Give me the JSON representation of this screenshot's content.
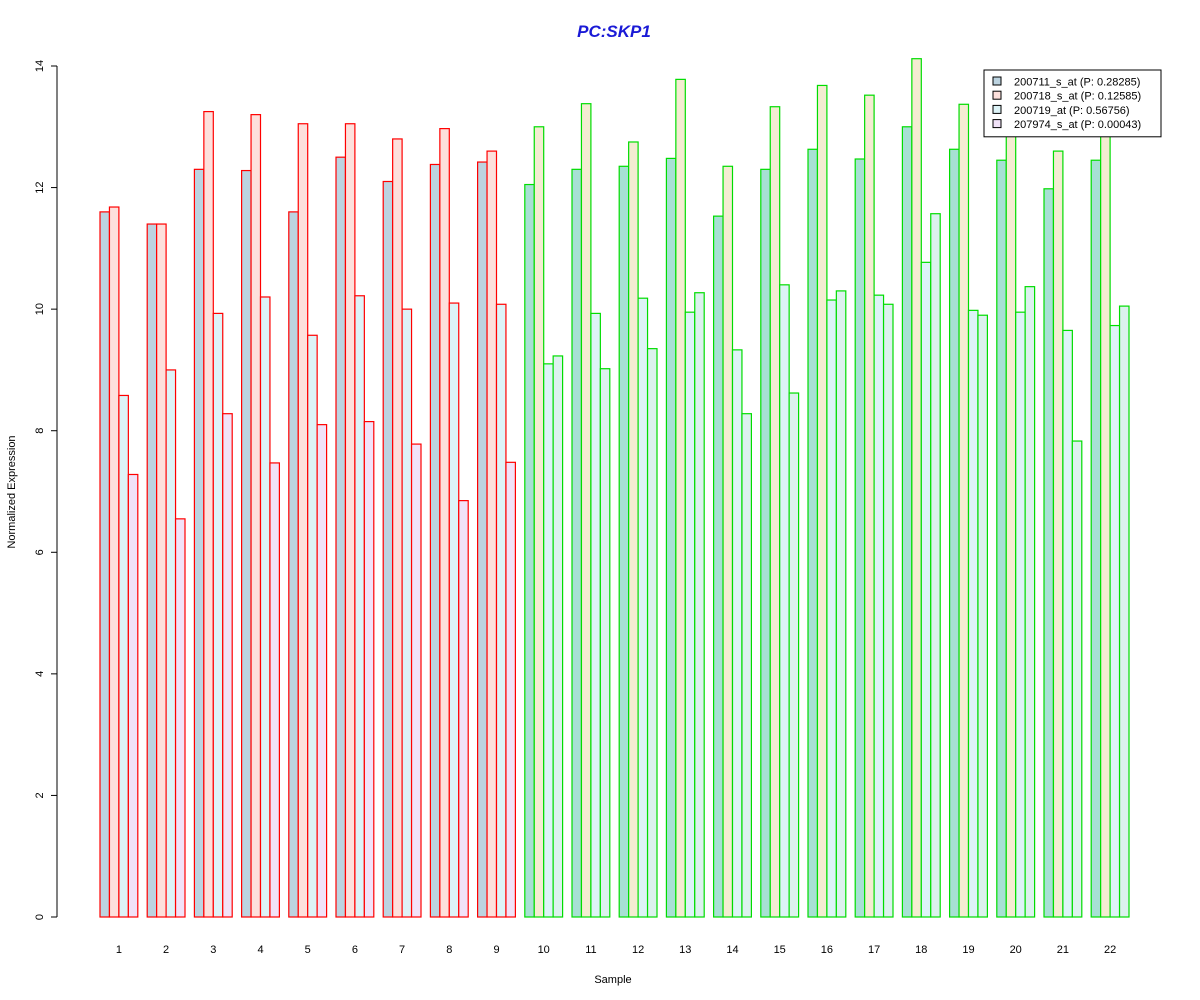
{
  "chart_data": {
    "type": "bar",
    "title": "PC:SKP1",
    "xlabel": "Sample",
    "ylabel": "Normalized Expression",
    "ylim": [
      0,
      14
    ],
    "yticks": [
      0,
      2,
      4,
      6,
      8,
      10,
      12,
      14
    ],
    "categories": [
      "1",
      "2",
      "3",
      "4",
      "5",
      "6",
      "7",
      "8",
      "9",
      "10",
      "11",
      "12",
      "13",
      "14",
      "15",
      "16",
      "17",
      "18",
      "19",
      "20",
      "21",
      "22"
    ],
    "group_outline_colors": [
      "#ff0000",
      "#ff0000",
      "#ff0000",
      "#ff0000",
      "#ff0000",
      "#ff0000",
      "#ff0000",
      "#ff0000",
      "#ff0000",
      "#00dd00",
      "#00dd00",
      "#00dd00",
      "#00dd00",
      "#00dd00",
      "#00dd00",
      "#00dd00",
      "#00dd00",
      "#00dd00",
      "#00dd00",
      "#00dd00",
      "#00dd00",
      "#00dd00"
    ],
    "series": [
      {
        "name": "200711_s_at (P: 0.28285)",
        "fill_group1": "#bcd3e0",
        "fill_group2": "#a7e0d4",
        "values": [
          11.6,
          11.4,
          12.3,
          12.28,
          11.6,
          12.5,
          12.1,
          12.38,
          12.42,
          12.05,
          12.3,
          12.35,
          12.48,
          11.53,
          12.3,
          12.63,
          12.47,
          13.0,
          12.63,
          12.45,
          11.98,
          12.45
        ]
      },
      {
        "name": "200718_s_at (P: 0.12585)",
        "fill_group1": "#fde0dc",
        "fill_group2": "#f4ecd2",
        "values": [
          11.68,
          11.4,
          13.25,
          13.2,
          13.05,
          13.05,
          12.8,
          12.97,
          12.6,
          13.0,
          13.38,
          12.75,
          13.78,
          12.35,
          13.33,
          13.68,
          13.52,
          14.12,
          13.37,
          12.9,
          12.6,
          12.9
        ]
      },
      {
        "name": "200719_at (P: 0.56756)",
        "fill_group1": "#ddf3f7",
        "fill_group2": "#ddf3f7",
        "values": [
          8.58,
          9.0,
          9.93,
          10.2,
          9.57,
          10.22,
          10.0,
          10.1,
          10.08,
          9.1,
          9.93,
          10.18,
          9.95,
          9.33,
          10.4,
          10.15,
          10.23,
          10.77,
          9.98,
          9.95,
          9.65,
          9.73
        ]
      },
      {
        "name": "207974_s_at (P: 0.00043)",
        "fill_group1": "#f1e2f8",
        "fill_group2": "#dcf1ee",
        "values": [
          7.28,
          6.55,
          8.28,
          7.47,
          8.1,
          8.15,
          7.78,
          6.85,
          7.48,
          9.23,
          9.02,
          9.35,
          10.27,
          8.28,
          8.62,
          10.3,
          10.08,
          11.57,
          9.9,
          10.37,
          7.83,
          10.05
        ]
      }
    ],
    "legend_position": "top-right",
    "grid": false
  },
  "colors": {
    "title": "#1a1ad6",
    "axis": "#000000",
    "legend_border": "#000000"
  }
}
